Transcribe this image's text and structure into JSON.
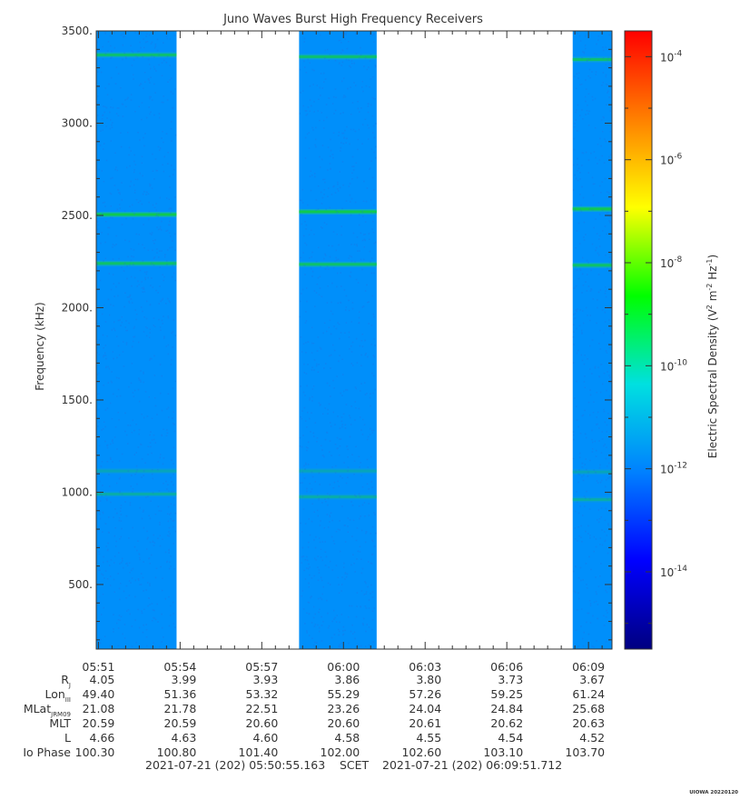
{
  "chart_data": {
    "type": "heatmap",
    "title": "Juno Waves Burst High Frequency Receivers",
    "ylabel": "Frequency (kHz)",
    "ylim": [
      150,
      3500
    ],
    "y_ticks": [
      500,
      1000,
      1500,
      2000,
      2500,
      3000,
      3500
    ],
    "y_tick_labels": [
      "500.",
      "1000.",
      "1500.",
      "2000.",
      "2500.",
      "3000.",
      "3500."
    ],
    "x_range_minutes": [
      0,
      18.9425
    ],
    "x_ticks": [
      {
        "minute": 0.08,
        "label": "05:51"
      },
      {
        "minute": 3.08,
        "label": "05:54"
      },
      {
        "minute": 6.08,
        "label": "05:57"
      },
      {
        "minute": 9.08,
        "label": "06:00"
      },
      {
        "minute": 12.08,
        "label": "06:03"
      },
      {
        "minute": 15.08,
        "label": "06:06"
      },
      {
        "minute": 18.08,
        "label": "06:09"
      }
    ],
    "data_blocks": [
      {
        "start_min": 0.0,
        "end_min": 2.95
      },
      {
        "start_min": 7.45,
        "end_min": 10.3
      },
      {
        "start_min": 17.5,
        "end_min": 18.9425
      }
    ],
    "emission_bands": [
      {
        "block": 0,
        "freq_khz": 3370,
        "strength": 0.75
      },
      {
        "block": 0,
        "freq_khz": 2505,
        "strength": 1.0
      },
      {
        "block": 0,
        "freq_khz": 2240,
        "strength": 0.8
      },
      {
        "block": 0,
        "freq_khz": 1115,
        "strength": 0.3
      },
      {
        "block": 0,
        "freq_khz": 990,
        "strength": 0.4
      },
      {
        "block": 1,
        "freq_khz": 3360,
        "strength": 0.75
      },
      {
        "block": 1,
        "freq_khz": 2520,
        "strength": 1.0
      },
      {
        "block": 1,
        "freq_khz": 2235,
        "strength": 0.8
      },
      {
        "block": 1,
        "freq_khz": 1115,
        "strength": 0.3
      },
      {
        "block": 1,
        "freq_khz": 975,
        "strength": 0.4
      },
      {
        "block": 2,
        "freq_khz": 3345,
        "strength": 0.75
      },
      {
        "block": 2,
        "freq_khz": 2535,
        "strength": 1.0
      },
      {
        "block": 2,
        "freq_khz": 2230,
        "strength": 0.8
      },
      {
        "block": 2,
        "freq_khz": 1110,
        "strength": 0.3
      },
      {
        "block": 2,
        "freq_khz": 960,
        "strength": 0.4
      }
    ],
    "colorbar": {
      "label_prefix": "Electric Spectral Density (V",
      "label_sup1": "2",
      "label_mid": " m",
      "label_sup2": "-2",
      "label_mid2": " Hz",
      "label_sup3": "-1",
      "label_suffix": ")",
      "log_min": -15.5,
      "log_max": -3.5,
      "tick_base": "10",
      "ticks": [
        -4,
        -6,
        -8,
        -10,
        -12,
        -14
      ],
      "colors": [
        "#000080",
        "#0000ff",
        "#0080ff",
        "#00e0e0",
        "#00ff00",
        "#ffff00",
        "#ff8000",
        "#ff0000"
      ]
    },
    "background_value_log": -11.8
  },
  "ephemeris": {
    "rows": [
      {
        "label": "R",
        "sub": "J",
        "values": [
          "4.05",
          "3.99",
          "3.93",
          "3.86",
          "3.80",
          "3.73",
          "3.67"
        ]
      },
      {
        "label": "Lon",
        "sub": "III",
        "values": [
          "49.40",
          "51.36",
          "53.32",
          "55.29",
          "57.26",
          "59.25",
          "61.24"
        ]
      },
      {
        "label": "MLat",
        "sub": "JRM09",
        "values": [
          "21.08",
          "21.78",
          "22.51",
          "23.26",
          "24.04",
          "24.84",
          "25.68"
        ]
      },
      {
        "label": "MLT",
        "sub": "",
        "values": [
          "20.59",
          "20.59",
          "20.60",
          "20.60",
          "20.61",
          "20.62",
          "20.63"
        ]
      },
      {
        "label": "L",
        "sub": "",
        "values": [
          "4.66",
          "4.63",
          "4.60",
          "4.58",
          "4.55",
          "4.54",
          "4.52"
        ]
      },
      {
        "label": "Io Phase",
        "sub": "",
        "values": [
          "100.30",
          "100.80",
          "101.40",
          "102.00",
          "102.60",
          "103.10",
          "103.70"
        ]
      }
    ]
  },
  "time_span": {
    "start": "2021-07-21 (202) 05:50:55.163",
    "mid": "SCET",
    "end": "2021-07-21 (202) 06:09:51.712"
  },
  "credit": "UIOWA 20220120"
}
